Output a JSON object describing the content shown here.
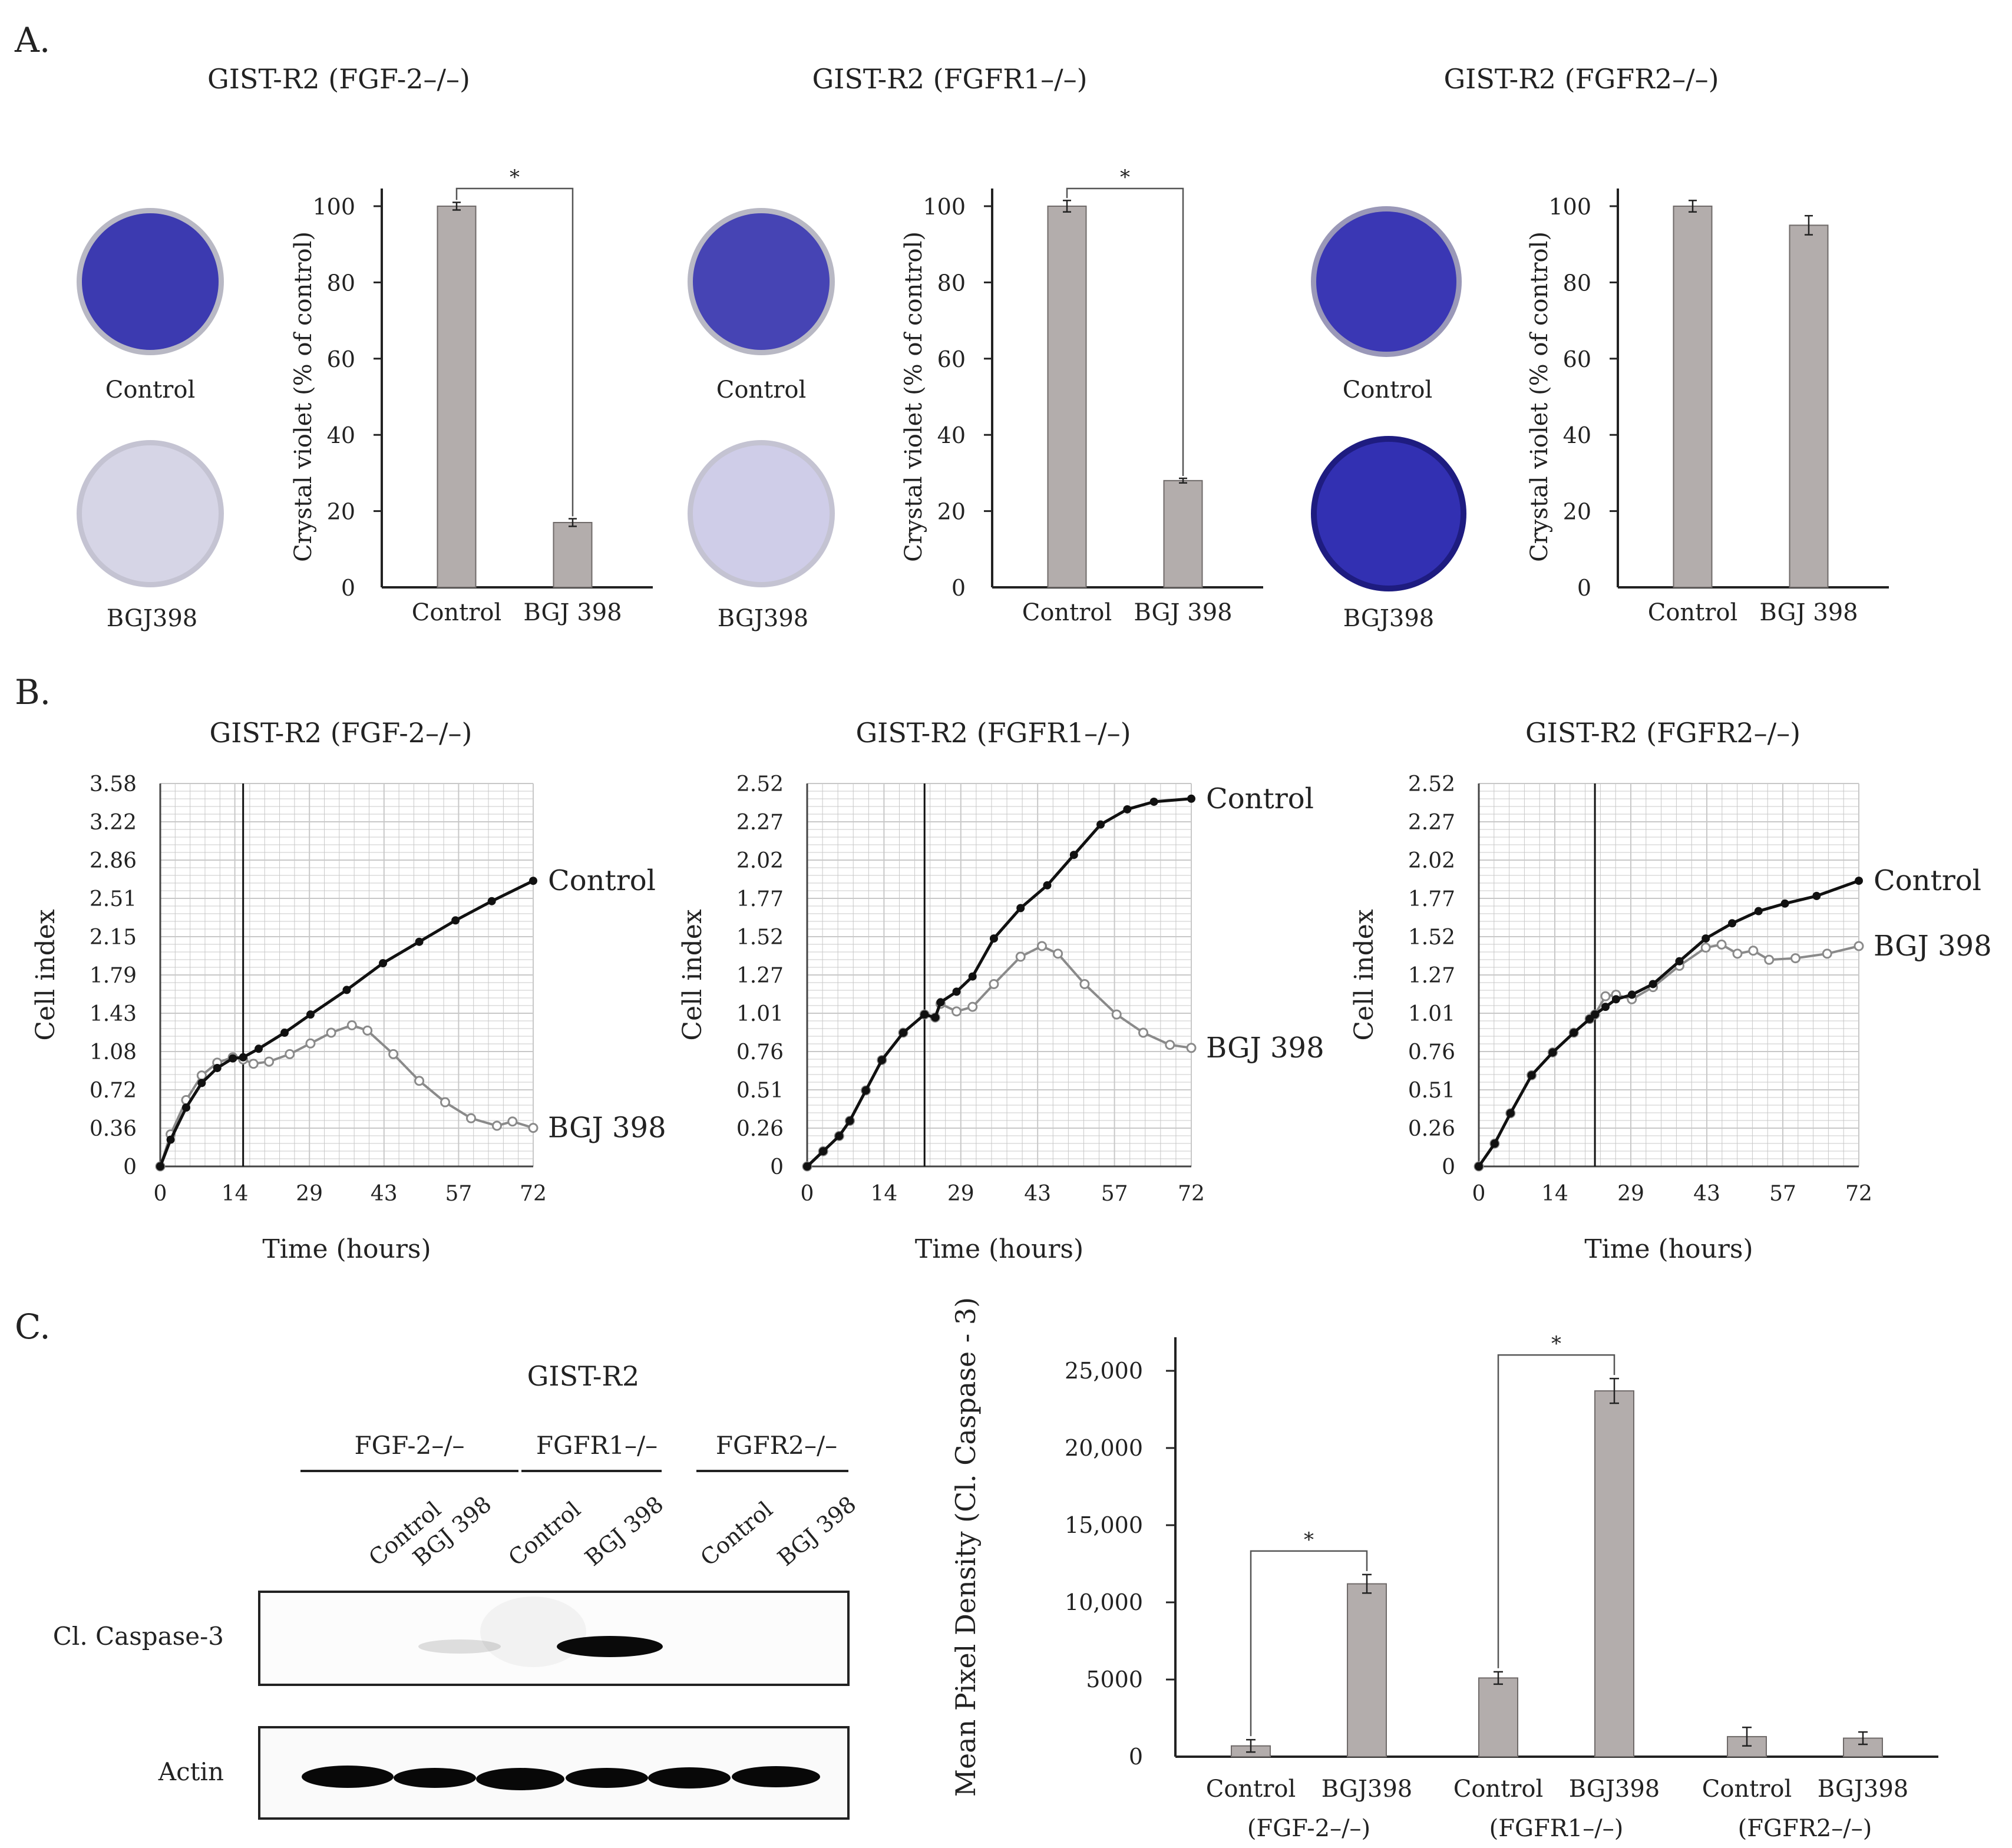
{
  "panel_letters": {
    "a": "A.",
    "b": "B.",
    "c": "C."
  },
  "panel_a": {
    "dish_labels": {
      "control": "Control",
      "treated": "BGJ398"
    },
    "groups": [
      {
        "title": "GIST-R2 (FGF-2–/–)",
        "dish_colors": {
          "control": "#3c3ab0",
          "treated": "#d6d5e6"
        }
      },
      {
        "title": "GIST-R2 (FGFR1–/–)",
        "dish_colors": {
          "control": "#4644b4",
          "treated": "#cfcde8"
        }
      },
      {
        "title": "GIST-R2 (FGFR2–/–)",
        "dish_colors": {
          "control": "#3a37b4",
          "treated": "#3230b2"
        }
      }
    ]
  },
  "panel_b": {
    "groups": [
      {
        "title": "GIST-R2 (FGF-2–/–)"
      },
      {
        "title": "GIST-R2 (FGFR1–/–)"
      },
      {
        "title": "GIST-R2 (FGFR2–/–)"
      }
    ]
  },
  "panel_c": {
    "blot": {
      "title": "GIST-R2",
      "groups": [
        "FGF-2–/–",
        "FGFR1–/–",
        "FGFR2–/–"
      ],
      "lanes": [
        "Control",
        "BGJ 398",
        "Control",
        "BGJ 398",
        "Control",
        "BGJ 398"
      ],
      "row_labels": [
        "Cl. Caspase-3",
        "Actin"
      ]
    }
  },
  "colors": {
    "bar": "#b3adac",
    "bar_edge": "#6f6a69",
    "axis": "#222222",
    "grid": "#c8c8c8",
    "control_line": "#111111",
    "treated_line": "#8a8a8a"
  },
  "chart_data": [
    {
      "id": "a1",
      "type": "bar",
      "title": "GIST-R2 (FGF-2–/–)",
      "categories": [
        "Control",
        "BGJ 398"
      ],
      "values": [
        100,
        17
      ],
      "errors": [
        1,
        1
      ],
      "ylabel": "Crystal violet (% of control)",
      "ylim": [
        0,
        100
      ],
      "yticks": [
        "0",
        "20",
        "40",
        "60",
        "80",
        "100"
      ],
      "significance": "*"
    },
    {
      "id": "a2",
      "type": "bar",
      "title": "GIST-R2 (FGFR1–/–)",
      "categories": [
        "Control",
        "BGJ 398"
      ],
      "values": [
        100,
        28
      ],
      "errors": [
        1.5,
        0.6
      ],
      "ylabel": "Crystal violet (% of control)",
      "ylim": [
        0,
        100
      ],
      "yticks": [
        "0",
        "20",
        "40",
        "60",
        "80",
        "100"
      ],
      "significance": "*"
    },
    {
      "id": "a3",
      "type": "bar",
      "title": "GIST-R2 (FGFR2–/–)",
      "categories": [
        "Control",
        "BGJ 398"
      ],
      "values": [
        100,
        95
      ],
      "errors": [
        1.5,
        2.5
      ],
      "ylabel": "Crystal violet (% of control)",
      "ylim": [
        0,
        100
      ],
      "yticks": [
        "0",
        "20",
        "40",
        "60",
        "80",
        "100"
      ],
      "significance": ""
    },
    {
      "id": "b1",
      "type": "line",
      "title": "GIST-R2 (FGF-2–/–)",
      "xlabel": "Time (hours)",
      "ylabel": "Cell index",
      "xticks": [
        "0",
        "14",
        "29",
        "43",
        "57",
        "72"
      ],
      "yticks": [
        "0",
        "0.36",
        "0.72",
        "1.08",
        "1.43",
        "1.79",
        "2.15",
        "2.51",
        "2.86",
        "3.22",
        "3.58"
      ],
      "xlim": [
        0,
        72
      ],
      "ylim": [
        0,
        3.58
      ],
      "treatment_time": 16,
      "series": [
        {
          "name": "Control",
          "x": [
            0,
            2,
            5,
            8,
            11,
            14,
            16,
            19,
            24,
            29,
            36,
            43,
            50,
            57,
            64,
            72
          ],
          "y": [
            0,
            0.25,
            0.55,
            0.78,
            0.92,
            1.01,
            1.02,
            1.1,
            1.25,
            1.42,
            1.65,
            1.9,
            2.1,
            2.3,
            2.48,
            2.67
          ]
        },
        {
          "name": "BGJ 398",
          "x": [
            0,
            2,
            5,
            8,
            11,
            14,
            16,
            18,
            21,
            25,
            29,
            33,
            37,
            40,
            45,
            50,
            55,
            60,
            65,
            68,
            72
          ],
          "y": [
            0,
            0.3,
            0.62,
            0.85,
            0.97,
            1.02,
            1.0,
            0.96,
            0.98,
            1.05,
            1.15,
            1.25,
            1.32,
            1.27,
            1.05,
            0.8,
            0.6,
            0.45,
            0.38,
            0.42,
            0.36
          ]
        }
      ]
    },
    {
      "id": "b2",
      "type": "line",
      "title": "GIST-R2 (FGFR1–/–)",
      "xlabel": "Time (hours)",
      "ylabel": "Cell index",
      "xticks": [
        "0",
        "14",
        "29",
        "43",
        "57",
        "72"
      ],
      "yticks": [
        "0",
        "0.26",
        "0.51",
        "0.76",
        "1.01",
        "1.27",
        "1.52",
        "1.77",
        "2.02",
        "2.27",
        "2.52"
      ],
      "xlim": [
        0,
        72
      ],
      "ylim": [
        0,
        2.52
      ],
      "treatment_time": 22,
      "series": [
        {
          "name": "Control",
          "x": [
            0,
            3,
            6,
            8,
            11,
            14,
            18,
            22,
            24,
            25,
            28,
            31,
            35,
            40,
            45,
            50,
            55,
            60,
            65,
            72
          ],
          "y": [
            0,
            0.1,
            0.2,
            0.3,
            0.5,
            0.7,
            0.88,
            1.0,
            0.98,
            1.08,
            1.15,
            1.25,
            1.5,
            1.7,
            1.85,
            2.05,
            2.25,
            2.35,
            2.4,
            2.42
          ]
        },
        {
          "name": "BGJ 398",
          "x": [
            0,
            3,
            6,
            8,
            11,
            14,
            18,
            22,
            24,
            25,
            28,
            31,
            35,
            40,
            44,
            47,
            52,
            58,
            63,
            68,
            72
          ],
          "y": [
            0,
            0.1,
            0.2,
            0.3,
            0.5,
            0.7,
            0.88,
            1.0,
            0.98,
            1.07,
            1.02,
            1.05,
            1.2,
            1.38,
            1.45,
            1.4,
            1.2,
            1.0,
            0.88,
            0.8,
            0.78
          ]
        }
      ]
    },
    {
      "id": "b3",
      "type": "line",
      "title": "GIST-R2 (FGFR2–/–)",
      "xlabel": "Time (hours)",
      "ylabel": "Cell index",
      "xticks": [
        "0",
        "14",
        "29",
        "43",
        "57",
        "72"
      ],
      "yticks": [
        "0",
        "0.26",
        "0.51",
        "0.76",
        "1.01",
        "1.27",
        "1.52",
        "1.77",
        "2.02",
        "2.27",
        "2.52"
      ],
      "xlim": [
        0,
        72
      ],
      "ylim": [
        0,
        2.52
      ],
      "treatment_time": 22,
      "series": [
        {
          "name": "Control",
          "x": [
            0,
            3,
            6,
            10,
            14,
            18,
            21,
            22,
            24,
            26,
            29,
            33,
            38,
            43,
            48,
            53,
            58,
            64,
            72
          ],
          "y": [
            0,
            0.15,
            0.35,
            0.6,
            0.75,
            0.88,
            0.97,
            1.0,
            1.05,
            1.1,
            1.13,
            1.2,
            1.35,
            1.5,
            1.6,
            1.68,
            1.73,
            1.78,
            1.88
          ]
        },
        {
          "name": "BGJ 398",
          "x": [
            0,
            3,
            6,
            10,
            14,
            18,
            21,
            22,
            24,
            26,
            29,
            33,
            38,
            43,
            46,
            49,
            52,
            55,
            60,
            66,
            72
          ],
          "y": [
            0,
            0.15,
            0.35,
            0.6,
            0.75,
            0.88,
            0.97,
            1.0,
            1.12,
            1.13,
            1.1,
            1.18,
            1.32,
            1.44,
            1.46,
            1.4,
            1.42,
            1.36,
            1.37,
            1.4,
            1.45
          ]
        }
      ]
    },
    {
      "id": "c",
      "type": "bar",
      "xlabel": "",
      "ylabel": "Mean Pixel Density (Cl. Caspase - 3)",
      "categories": [
        "Control",
        "BGJ398",
        "Control",
        "BGJ398",
        "Control",
        "BGJ398"
      ],
      "group_labels": [
        "(FGF-2–/–)",
        "(FGFR1–/–)",
        "(FGFR2–/–)"
      ],
      "values": [
        700,
        11200,
        5100,
        23700,
        1300,
        1200
      ],
      "errors": [
        400,
        600,
        400,
        800,
        600,
        400
      ],
      "ylim": [
        0,
        25000
      ],
      "yticks": [
        "0",
        "5000",
        "10,000",
        "15,000",
        "20,000",
        "25,000"
      ],
      "significance": [
        {
          "from": 0,
          "to": 1,
          "label": "*"
        },
        {
          "from": 2,
          "to": 3,
          "label": "*"
        }
      ]
    }
  ]
}
